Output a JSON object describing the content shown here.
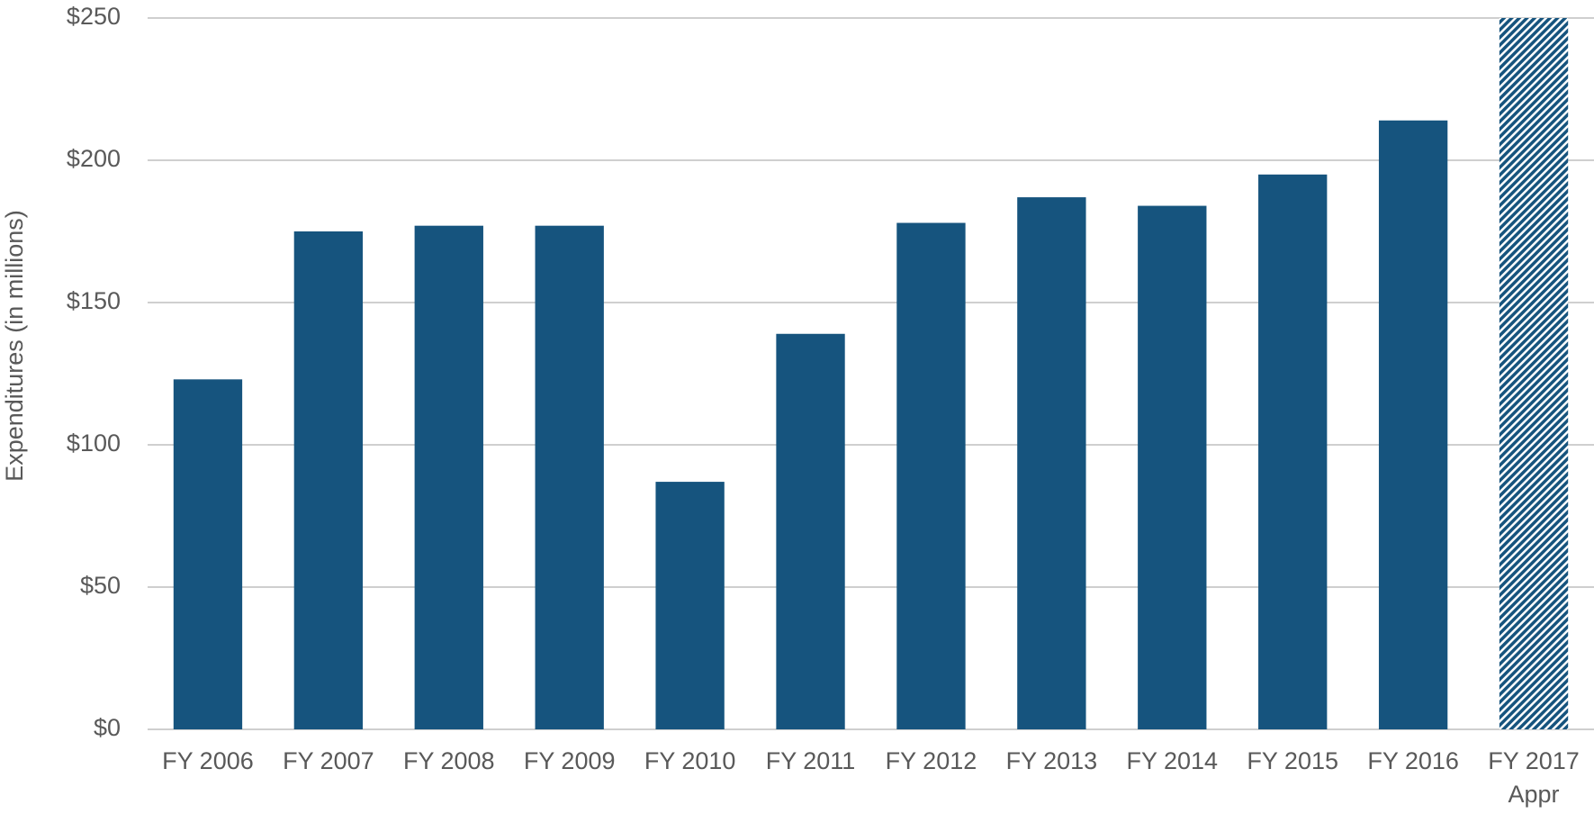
{
  "chart_data": {
    "type": "bar",
    "y_label": "Expenditures (in millions)",
    "categories": [
      "FY 2006",
      "FY 2007",
      "FY 2008",
      "FY 2009",
      "FY 2010",
      "FY 2011",
      "FY 2012",
      "FY 2013",
      "FY 2014",
      "FY 2015",
      "FY 2016",
      "FY 2017\nAppr"
    ],
    "values": [
      123,
      175,
      177,
      177,
      87,
      139,
      178,
      187,
      184,
      195,
      214,
      250
    ],
    "styles": [
      "solid",
      "solid",
      "solid",
      "solid",
      "solid",
      "solid",
      "solid",
      "solid",
      "solid",
      "solid",
      "solid",
      "hatched"
    ],
    "color": "#16547e",
    "ylim": [
      0,
      250
    ],
    "yticks": [
      {
        "value": 0,
        "label": "$0"
      },
      {
        "value": 50,
        "label": "$50"
      },
      {
        "value": 100,
        "label": "$100"
      },
      {
        "value": 150,
        "label": "$150"
      },
      {
        "value": 200,
        "label": "$200"
      },
      {
        "value": 250,
        "label": "$250"
      }
    ],
    "grid": true
  }
}
